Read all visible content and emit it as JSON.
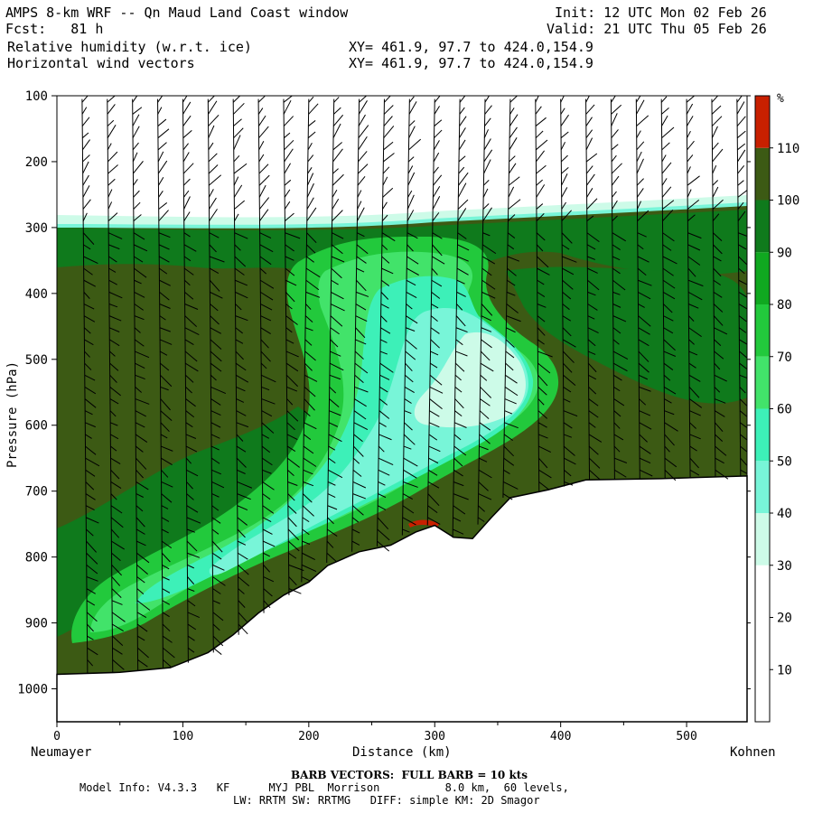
{
  "header": {
    "title": "AMPS 8-km WRF -- Qn Maud Land Coast window",
    "fcst_label": "Fcst:",
    "fcst_value": "81 h",
    "init": "Init: 12 UTC Mon 02 Feb 26",
    "valid": "Valid: 21 UTC Thu 05 Feb 26",
    "field1": "Relative humidity (w.r.t. ice)",
    "field2": "Horizontal wind vectors",
    "xy1": "XY= 461.9, 97.7 to 424.0,154.9",
    "xy2": "XY= 461.9, 97.7 to 424.0,154.9"
  },
  "footer": {
    "barb_note": "BARB VECTORS:  FULL BARB = 10 kts",
    "model_info_1": "Model Info: V4.3.3   KF      MYJ PBL  Morrison          8.0 km,  60 levels,",
    "model_info_2": "LW: RRTM SW: RRTMG   DIFF: simple KM: 2D Smagor"
  },
  "chart_data": {
    "type": "heatmap",
    "title": "Relative humidity (w.r.t. ice)",
    "xlabel": "Distance (km)",
    "ylabel": "Pressure (hPa)",
    "xlim": [
      0,
      548
    ],
    "ylim": [
      1050,
      100
    ],
    "x_ticks": [
      0,
      100,
      200,
      300,
      400,
      500
    ],
    "y_ticks": [
      100,
      200,
      300,
      400,
      500,
      600,
      700,
      800,
      900,
      1000
    ],
    "x_end_labels": {
      "left": "Neumayer",
      "right": "Kohnen"
    },
    "colorbar": {
      "unit": "%",
      "levels": [
        10,
        20,
        30,
        40,
        50,
        60,
        70,
        80,
        90,
        100,
        110
      ],
      "colors": [
        "#ffffff",
        "#ffffff",
        "#ffffff",
        "#cdfbe8",
        "#78f5d8",
        "#3df0b8",
        "#42e36a",
        "#22c93c",
        "#10a820",
        "#0f7a1c",
        "#3c5a14",
        "#c82000"
      ]
    },
    "terrain_surface_hPa": [
      [
        0,
        978
      ],
      [
        50,
        975
      ],
      [
        90,
        968
      ],
      [
        120,
        945
      ],
      [
        140,
        918
      ],
      [
        160,
        885
      ],
      [
        180,
        858
      ],
      [
        200,
        838
      ],
      [
        215,
        813
      ],
      [
        240,
        792
      ],
      [
        265,
        782
      ],
      [
        285,
        762
      ],
      [
        300,
        752
      ],
      [
        315,
        770
      ],
      [
        330,
        772
      ],
      [
        345,
        740
      ],
      [
        360,
        710
      ],
      [
        390,
        698
      ],
      [
        420,
        683
      ],
      [
        480,
        681
      ],
      [
        548,
        677
      ]
    ],
    "moist_top_hPa": [
      [
        0,
        290
      ],
      [
        200,
        293
      ],
      [
        300,
        292
      ],
      [
        400,
        285
      ],
      [
        548,
        266
      ]
    ],
    "wind_barbs": "Horizontal wind vectors (barbs) plotted at columns every ~20 km along the section"
  }
}
